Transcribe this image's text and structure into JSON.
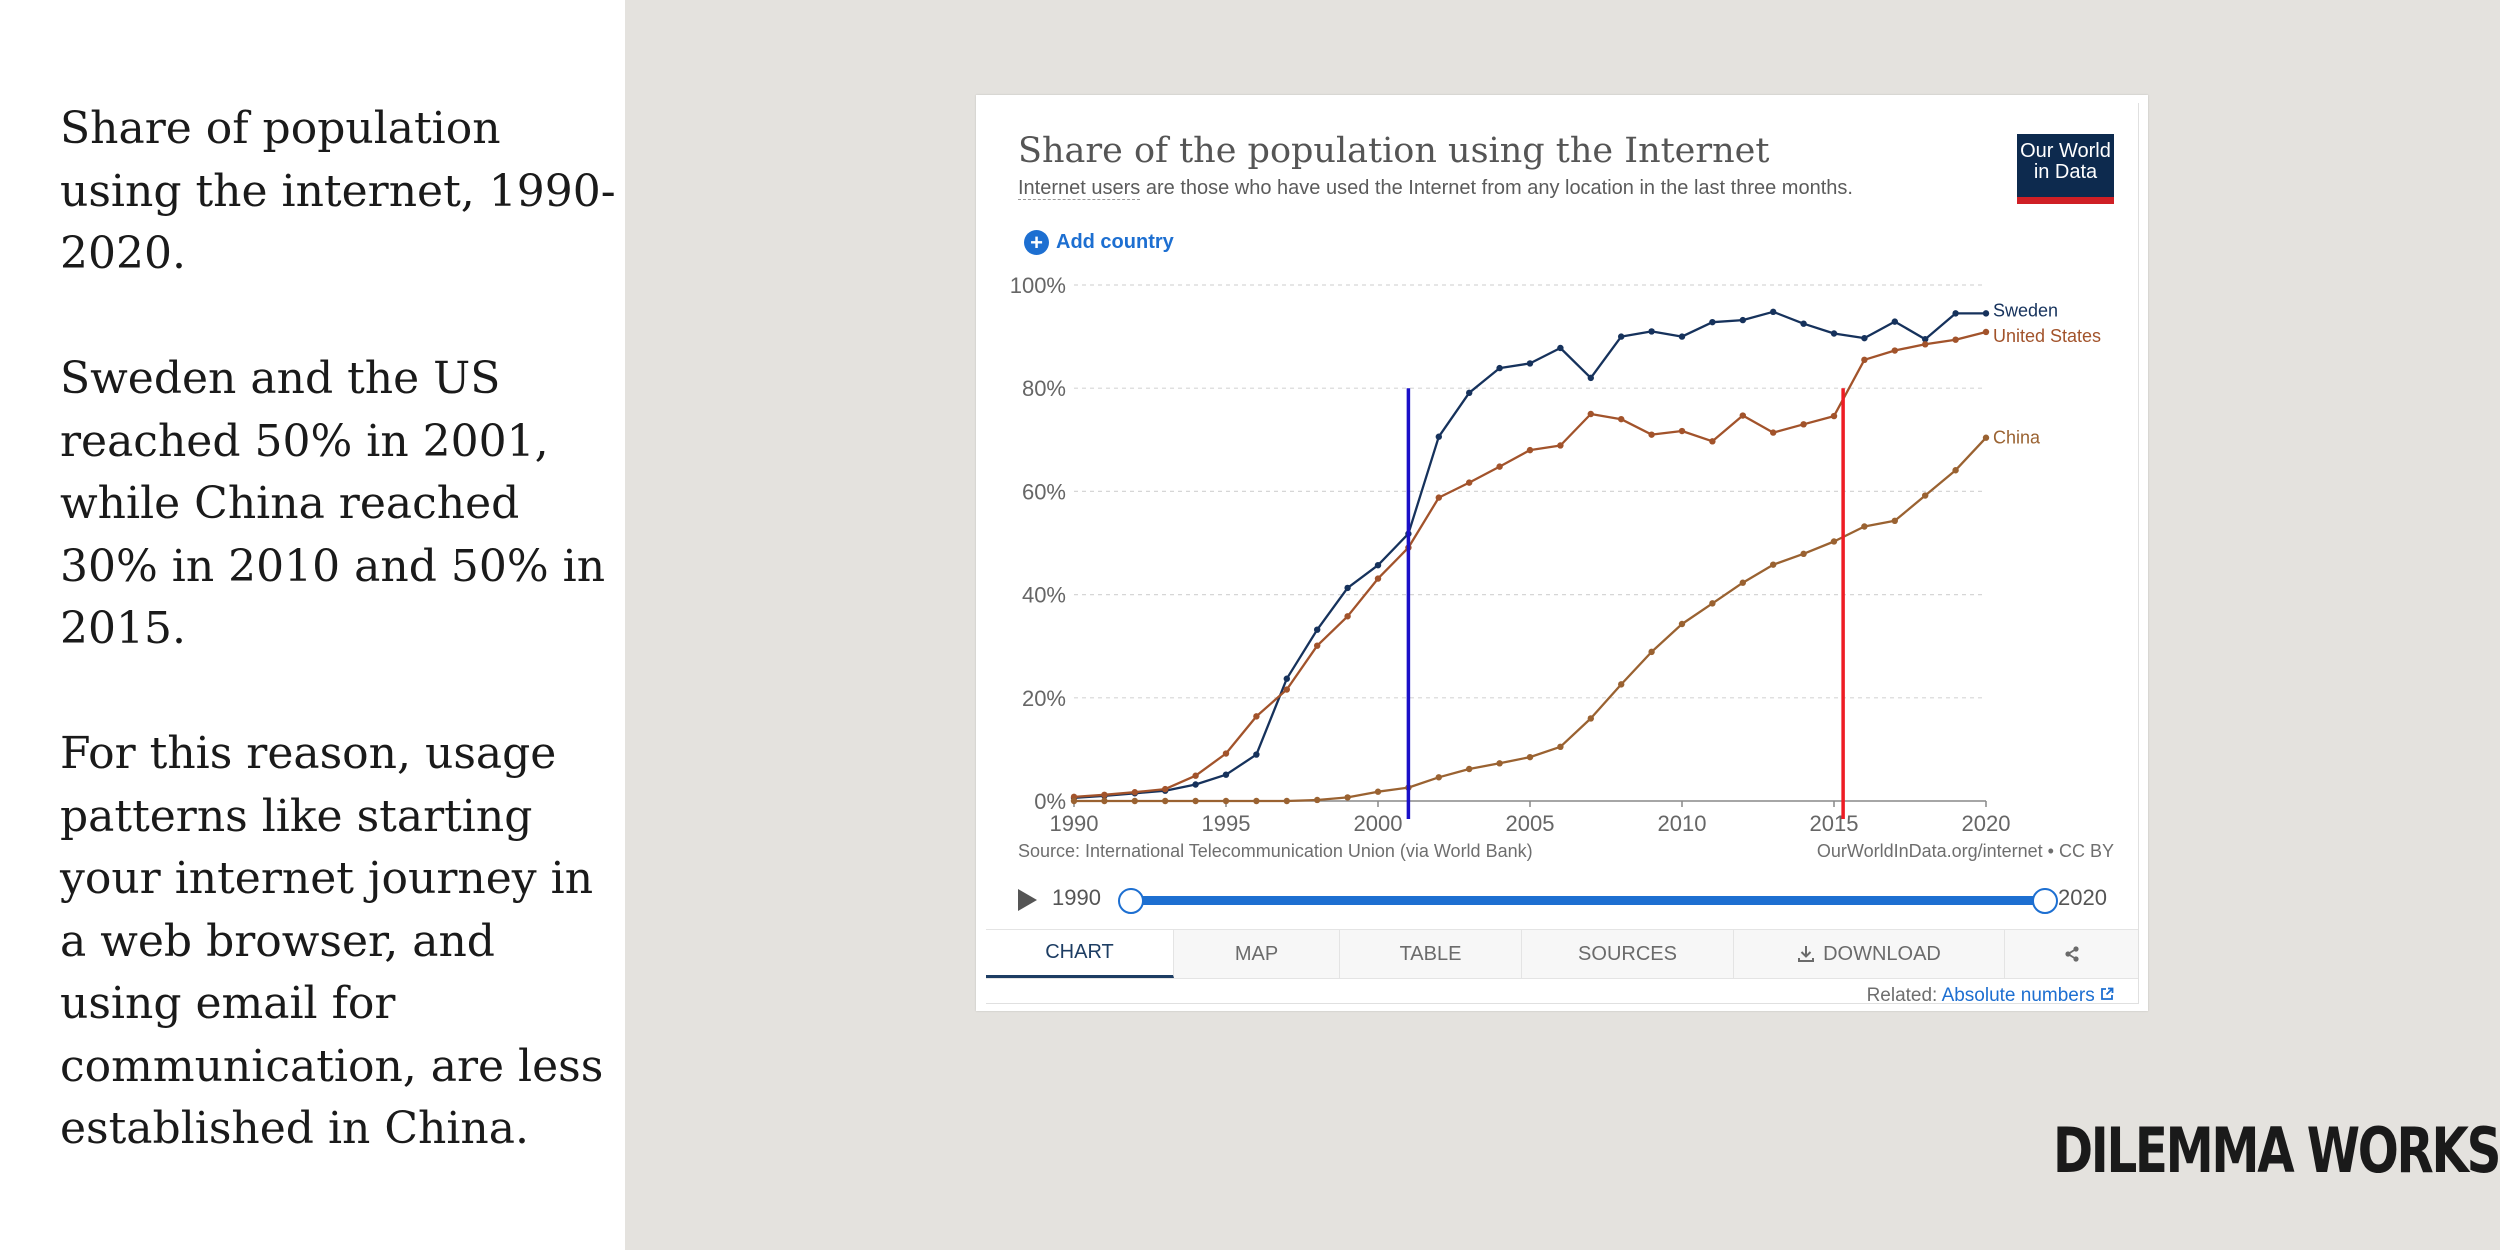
{
  "left_panel": {
    "paragraphs": [
      "Share of population using the internet, 1990-2020.",
      "Sweden and the US reached 50% in 2001, while China reached 30% in 2010 and 50% in 2015.",
      "For this reason, usage patterns like starting your internet journey in a web browser, and using email for communication, are less established in China."
    ]
  },
  "brand": "DILEMMA WORKS",
  "card": {
    "title": "Share of the population using the Internet",
    "subtitle_term": "Internet users",
    "subtitle_rest": " are those who have used the Internet from any location in the last three months.",
    "logo_line1": "Our World",
    "logo_line2": "in Data",
    "add_country": "Add country",
    "source": "Source: International Telecommunication Union (via World Bank)",
    "credit": "OurWorldInData.org/internet • CC BY",
    "timeline": {
      "start": "1990",
      "end": "2020",
      "start_value": 1990,
      "end_value": 2020
    },
    "tabs": [
      "CHART",
      "MAP",
      "TABLE",
      "SOURCES",
      "DOWNLOAD"
    ],
    "active_tab": "CHART",
    "related_label": "Related: ",
    "related_link": "Absolute numbers"
  },
  "colors": {
    "sweden": "#16325c",
    "united_states": "#a2532b",
    "china": "#9a6231",
    "blue_marker": "#1a10c8",
    "red_marker": "#ee1c24",
    "accent": "#1d6fd1"
  },
  "chart_data": {
    "type": "line",
    "title": "Share of the population using the Internet",
    "xlabel": "",
    "ylabel": "",
    "xlim": [
      1990,
      2020
    ],
    "ylim": [
      0,
      100
    ],
    "yticks": [
      "0%",
      "20%",
      "40%",
      "60%",
      "80%",
      "100%"
    ],
    "xticks": [
      "1990",
      "1995",
      "2000",
      "2005",
      "2010",
      "2015",
      "2020"
    ],
    "x": [
      1990,
      1991,
      1992,
      1993,
      1994,
      1995,
      1996,
      1997,
      1998,
      1999,
      2000,
      2001,
      2002,
      2003,
      2004,
      2005,
      2006,
      2007,
      2008,
      2009,
      2010,
      2011,
      2012,
      2013,
      2014,
      2015,
      2016,
      2017,
      2018,
      2019,
      2020
    ],
    "series": [
      {
        "name": "Sweden",
        "color": "#16325c",
        "values": [
          0.6,
          1.0,
          1.5,
          2.0,
          3.2,
          5.1,
          9.0,
          23.7,
          33.2,
          41.3,
          45.7,
          51.8,
          70.6,
          79.1,
          83.9,
          84.8,
          87.8,
          82.0,
          90.0,
          91.0,
          90.0,
          92.8,
          93.2,
          94.8,
          92.5,
          90.6,
          89.7,
          92.9,
          89.5,
          94.5,
          94.5
        ]
      },
      {
        "name": "United States",
        "color": "#a2532b",
        "values": [
          0.8,
          1.2,
          1.7,
          2.3,
          4.9,
          9.2,
          16.4,
          21.6,
          30.1,
          35.8,
          43.1,
          49.1,
          58.8,
          61.7,
          64.8,
          68.0,
          68.9,
          75.0,
          74.0,
          71.0,
          71.7,
          69.7,
          74.7,
          71.4,
          73.0,
          74.6,
          85.5,
          87.3,
          88.5,
          89.4,
          90.9
        ]
      },
      {
        "name": "China",
        "color": "#9a6231",
        "values": [
          0.0,
          0.0,
          0.0,
          0.0,
          0.0,
          0.0,
          0.0,
          0.0,
          0.2,
          0.7,
          1.8,
          2.6,
          4.6,
          6.2,
          7.3,
          8.5,
          10.5,
          16.0,
          22.6,
          28.9,
          34.3,
          38.3,
          42.3,
          45.8,
          47.9,
          50.3,
          53.2,
          54.3,
          59.2,
          64.1,
          70.4
        ]
      }
    ],
    "annotations": [
      {
        "type": "vertical_line",
        "x": 2001,
        "y_to": 80,
        "color": "#1a10c8"
      },
      {
        "type": "vertical_line",
        "x": 2015.3,
        "y_to": 80,
        "color": "#ee1c24"
      }
    ]
  }
}
